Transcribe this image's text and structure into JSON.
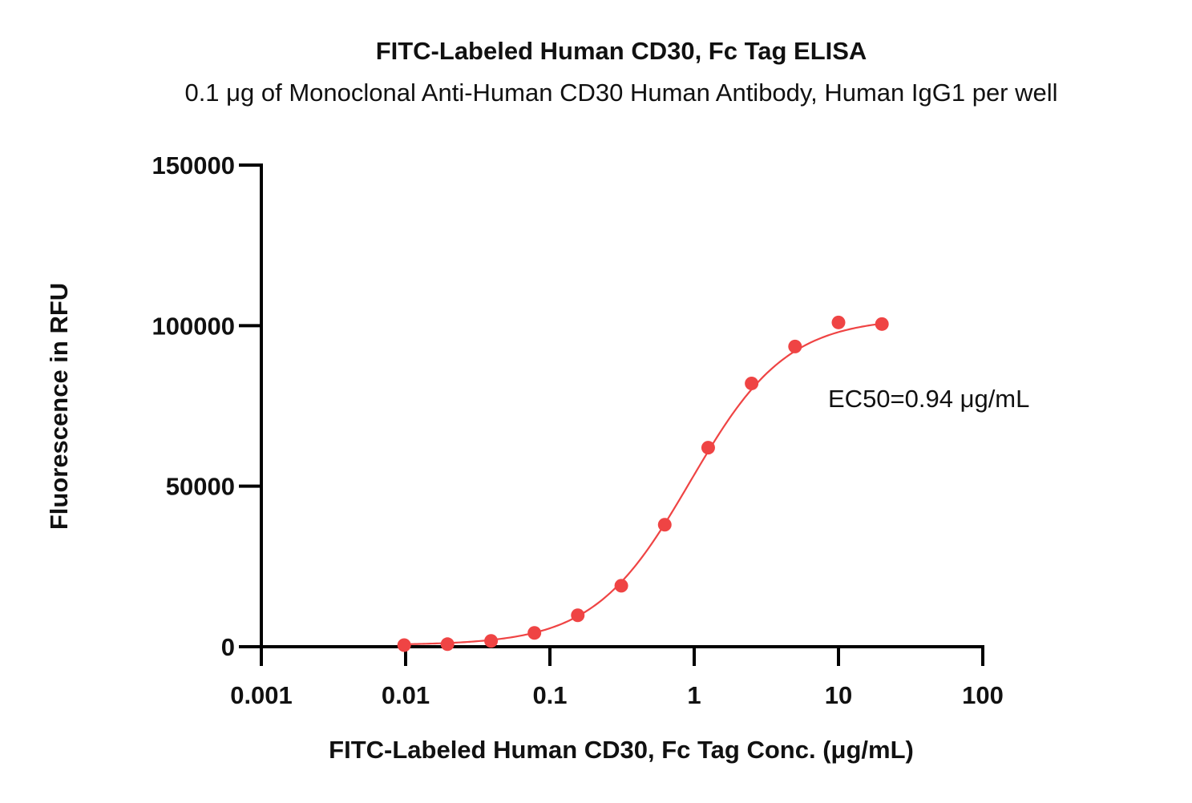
{
  "chart_data": {
    "type": "scatter",
    "title": "FITC-Labeled Human CD30, Fc Tag ELISA",
    "subtitle": "0.1 μg of Monoclonal Anti-Human CD30 Human Antibody, Human IgG1 per well",
    "xlabel": "FITC-Labeled Human CD30, Fc Tag Conc. (μg/mL)",
    "ylabel": "Fluorescence in RFU",
    "x_scale": "log",
    "xlim": [
      0.001,
      100
    ],
    "ylim": [
      0,
      150000
    ],
    "x_ticks": [
      "0.001",
      "0.01",
      "0.1",
      "1",
      "10",
      "100"
    ],
    "y_ticks": [
      "0",
      "50000",
      "100000",
      "150000"
    ],
    "annotation": "EC50=0.94  μg/mL",
    "grid": false,
    "color": "#EF4444",
    "series": [
      {
        "x": [
          0.00977,
          0.0195,
          0.0391,
          0.0781,
          0.156,
          0.3125,
          0.625,
          1.25,
          2.5,
          5,
          10,
          20
        ],
        "y": [
          500,
          800,
          1800,
          4300,
          9800,
          19000,
          38000,
          62000,
          82000,
          93500,
          101000,
          100500
        ]
      }
    ],
    "fit": {
      "bottom": 500,
      "top": 102500,
      "ec50": 0.94,
      "hill": 1.3
    }
  }
}
